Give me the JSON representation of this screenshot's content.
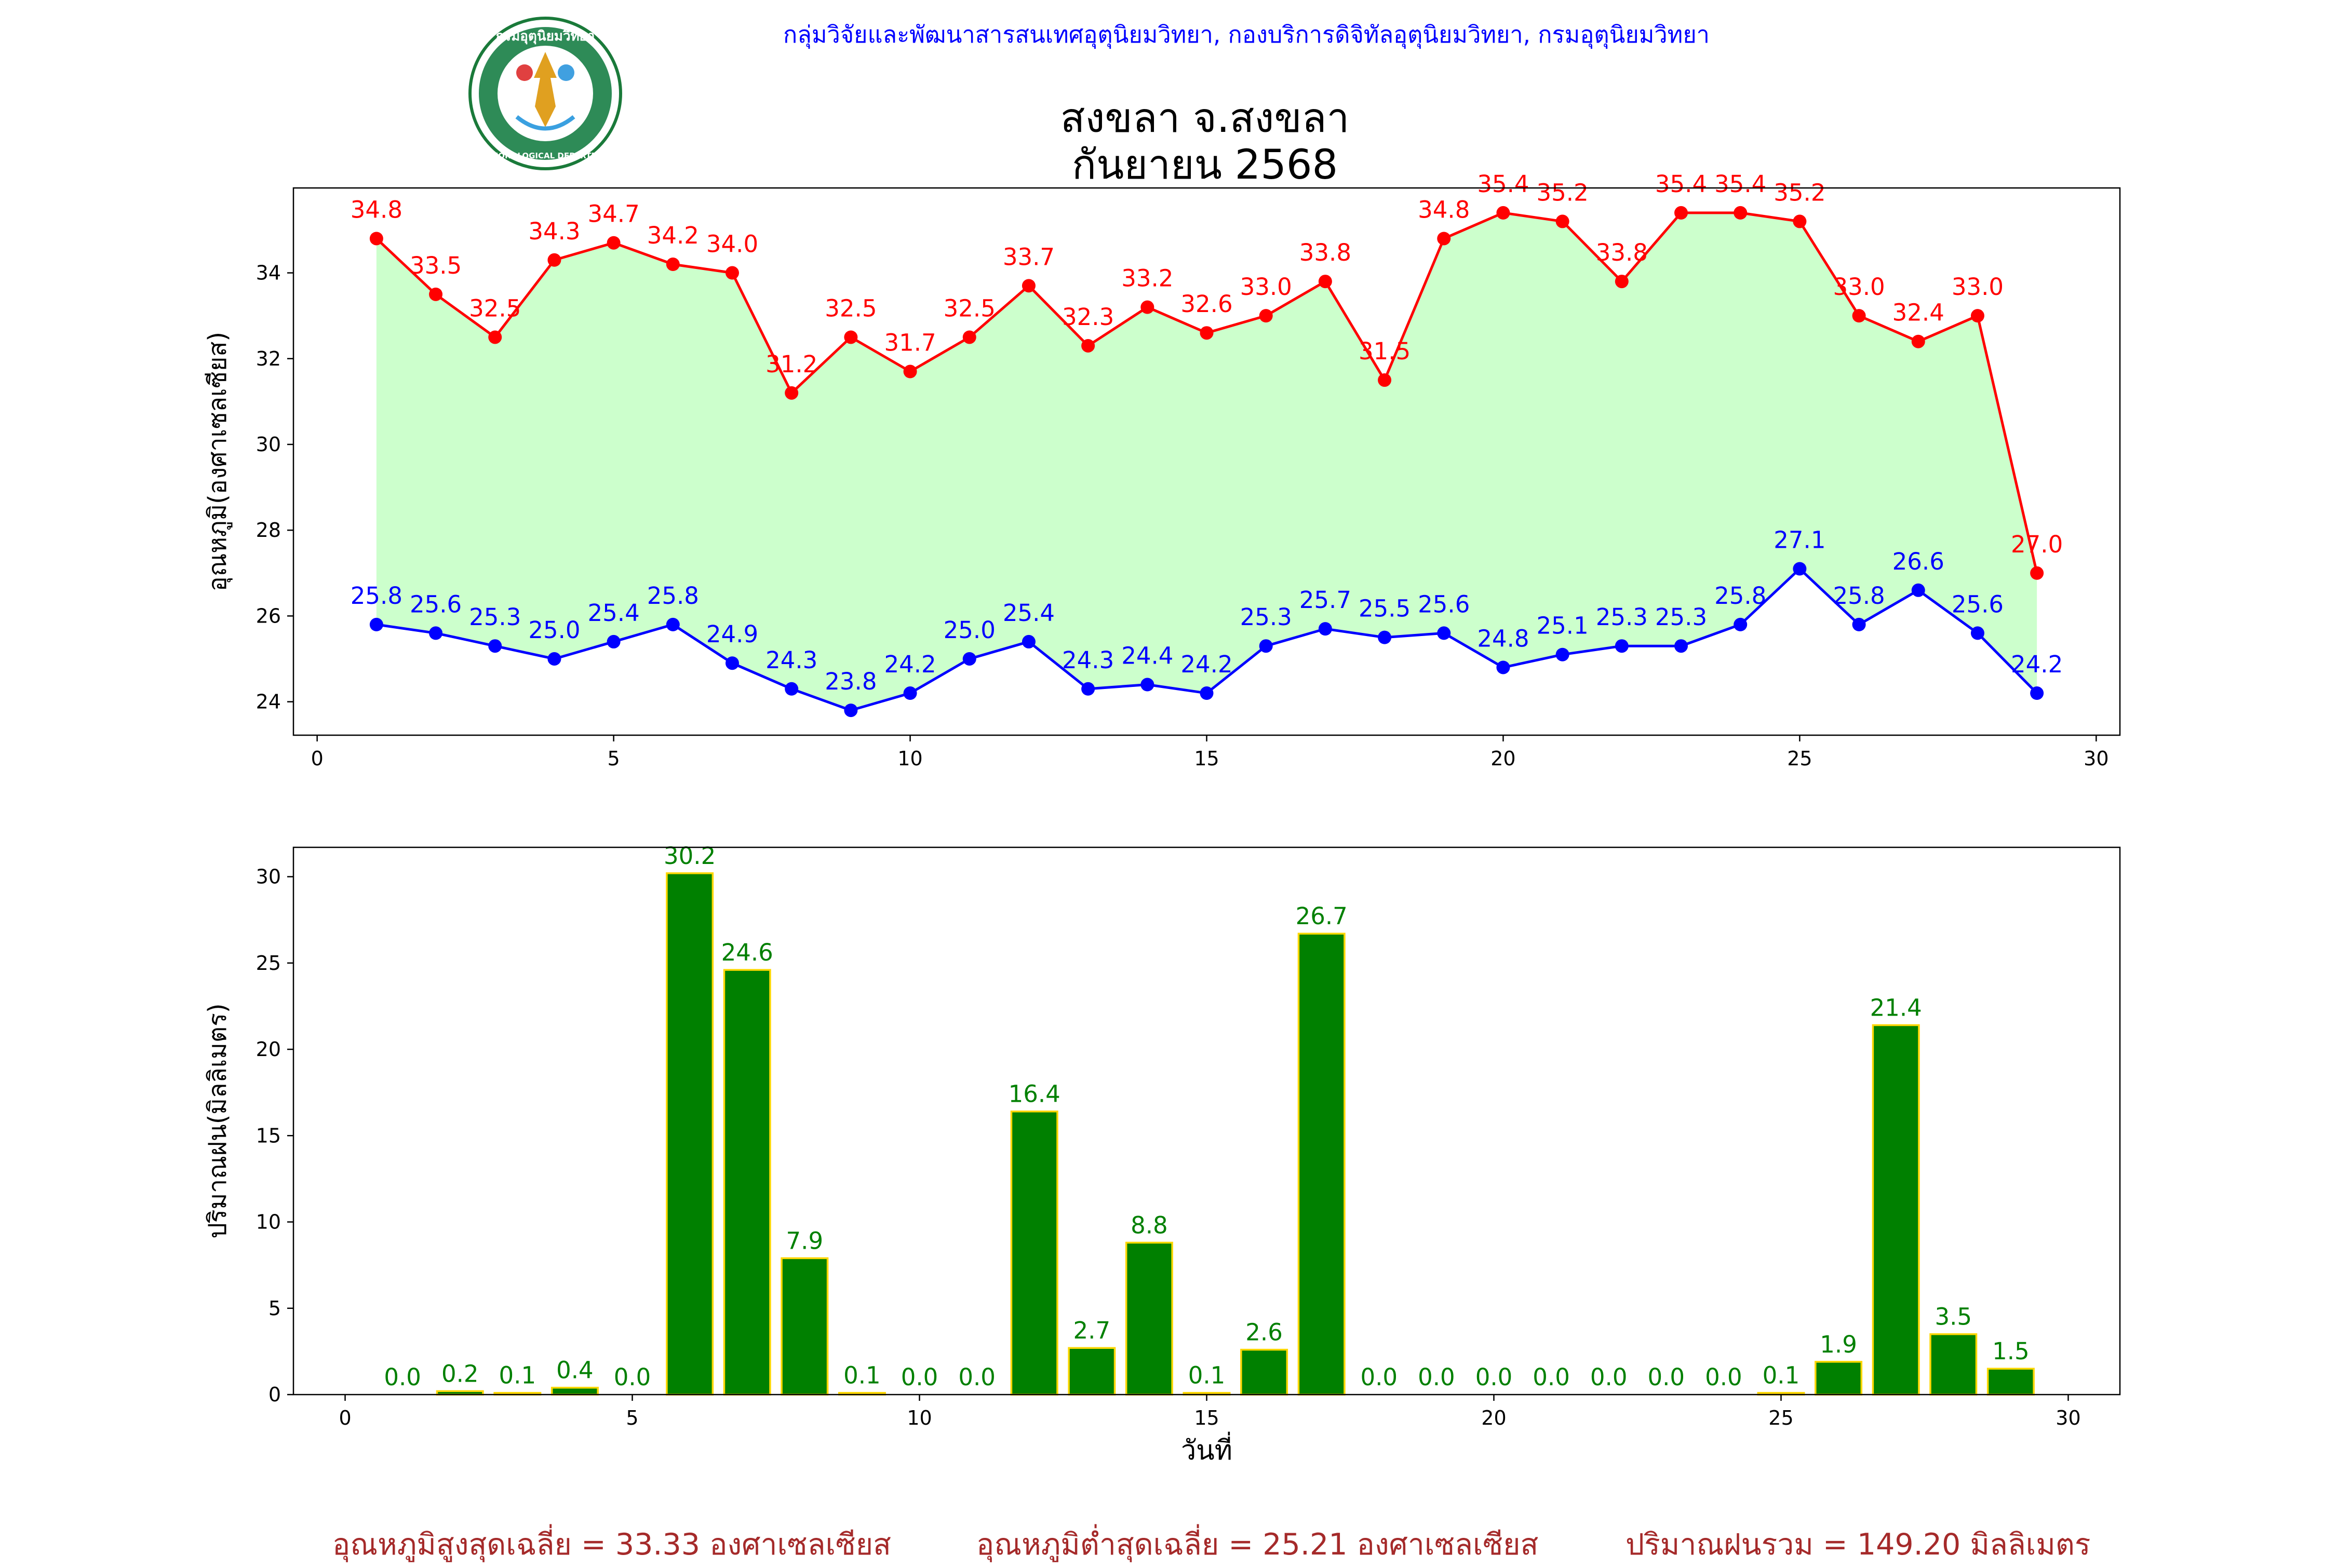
{
  "header": {
    "agency": "กลุ่มวิจัยและพัฒนาสารสนเทศอุตุนิยมวิทยา, กองบริการดิจิทัลอุตุนิยมวิทยา, กรมอุตุนิยมวิทยา",
    "title_line1": "สงขลา จ.สงขลา",
    "title_line2": "กันยายน 2568",
    "logo_text": "กรมอุตุนิยมวิทยา",
    "logo_subtext": "METEOROLOGICAL DEPARTMENT"
  },
  "colors": {
    "max_temp": "#ff0000",
    "min_temp": "#0000ff",
    "fill": "#ccffcc",
    "rain_bar": "#008000",
    "rain_edge": "#ffd700",
    "header_text": "#0000ff",
    "footer_text": "#a52a2a"
  },
  "chart_data": [
    {
      "type": "line",
      "ylabel": "อุณหภูมิ(องศาเซลเซียส)",
      "xlim": [
        -0.4,
        30.4
      ],
      "ylim": [
        23.22,
        35.98
      ],
      "xticks": [
        0,
        5,
        10,
        15,
        20,
        25,
        30
      ],
      "yticks": [
        24,
        26,
        28,
        30,
        32,
        34
      ],
      "x": [
        1,
        2,
        3,
        4,
        5,
        6,
        7,
        8,
        9,
        10,
        11,
        12,
        13,
        14,
        15,
        16,
        17,
        18,
        19,
        20,
        21,
        22,
        23,
        24,
        25,
        26,
        27,
        28,
        29
      ],
      "series": [
        {
          "name": "max",
          "values": [
            34.8,
            33.5,
            32.5,
            34.3,
            34.7,
            34.2,
            34.0,
            31.2,
            32.5,
            31.7,
            32.5,
            33.7,
            32.3,
            33.2,
            32.6,
            33.0,
            33.8,
            31.5,
            34.8,
            35.4,
            35.2,
            33.8,
            35.4,
            35.4,
            35.2,
            33.0,
            32.4,
            33.0,
            27.0
          ]
        },
        {
          "name": "min",
          "values": [
            25.8,
            25.6,
            25.3,
            25.0,
            25.4,
            25.8,
            24.9,
            24.3,
            23.8,
            24.2,
            25.0,
            25.4,
            24.3,
            24.4,
            24.2,
            25.3,
            25.7,
            25.5,
            25.6,
            24.8,
            25.1,
            25.3,
            25.3,
            25.8,
            27.1,
            25.8,
            26.6,
            25.6,
            24.2
          ]
        }
      ]
    },
    {
      "type": "bar",
      "ylabel": "ปริมาณฝน(มิลลิเมตร)",
      "xlabel": "วันที่",
      "xlim": [
        -0.9,
        30.9
      ],
      "ylim": [
        0,
        31.7
      ],
      "xticks": [
        0,
        5,
        10,
        15,
        20,
        25,
        30
      ],
      "yticks": [
        0,
        5,
        10,
        15,
        20,
        25,
        30
      ],
      "x": [
        1,
        2,
        3,
        4,
        5,
        6,
        7,
        8,
        9,
        10,
        11,
        12,
        13,
        14,
        15,
        16,
        17,
        18,
        19,
        20,
        21,
        22,
        23,
        24,
        25,
        26,
        27,
        28,
        29
      ],
      "values": [
        0.0,
        0.2,
        0.1,
        0.4,
        0.0,
        30.2,
        24.6,
        7.9,
        0.1,
        0.0,
        0.0,
        16.4,
        2.7,
        8.8,
        0.1,
        2.6,
        26.7,
        0.0,
        0.0,
        0.0,
        0.0,
        0.0,
        0.0,
        0.0,
        0.1,
        1.9,
        21.4,
        3.5,
        1.5
      ]
    }
  ],
  "footer": {
    "avg_max": "อุณหภูมิสูงสุดเฉลี่ย = 33.33 องศาเซลเซียส",
    "avg_min": "อุณหภูมิต่ำสุดเฉลี่ย = 25.21 องศาเซลเซียส",
    "total_rain": "ปริมาณฝนรวม = 149.20 มิลลิเมตร"
  }
}
